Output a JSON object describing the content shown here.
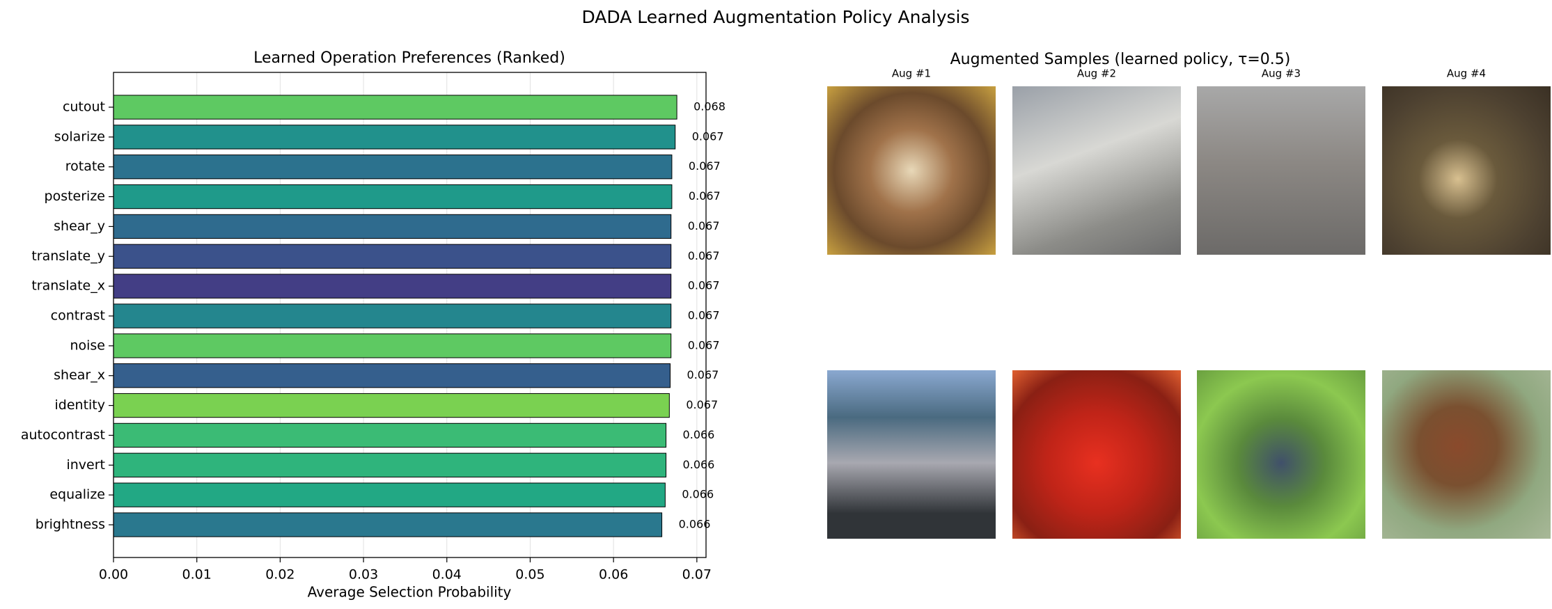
{
  "title": "DADA Learned Augmentation Policy Analysis",
  "chart_data": {
    "type": "barh",
    "title": "Learned Operation Preferences (Ranked)",
    "x_label": "Average Selection Probability",
    "categories": [
      "cutout",
      "solarize",
      "rotate",
      "posterize",
      "shear_y",
      "translate_y",
      "translate_x",
      "contrast",
      "noise",
      "shear_x",
      "identity",
      "autocontrast",
      "invert",
      "equalize",
      "brightness"
    ],
    "values": [
      0.0676,
      0.0674,
      0.067,
      0.067,
      0.0669,
      0.0669,
      0.0669,
      0.0669,
      0.0669,
      0.0668,
      0.0667,
      0.0663,
      0.0663,
      0.0662,
      0.0658
    ],
    "value_labels": [
      "0.068",
      "0.067",
      "0.067",
      "0.067",
      "0.067",
      "0.067",
      "0.067",
      "0.067",
      "0.067",
      "0.067",
      "0.067",
      "0.066",
      "0.066",
      "0.066",
      "0.066"
    ],
    "colors": [
      "#5ec962",
      "#21918c",
      "#2c728e",
      "#1f9a8a",
      "#2f6b8e",
      "#3b528b",
      "#433e85",
      "#24868e",
      "#5ec962",
      "#355f8d",
      "#7ad151",
      "#3bbb75",
      "#2fb47c",
      "#22a884",
      "#2a788e"
    ],
    "xlim": [
      0,
      0.0711
    ],
    "xticks": [
      {
        "value": 0,
        "label": "0.00"
      },
      0.01,
      0.02,
      0.03,
      0.04,
      0.05,
      0.06,
      0.07
    ],
    "grid": true
  },
  "samples": {
    "title": "Augmented Samples (learned policy, τ=0.5)",
    "labels": [
      "Aug #1",
      "Aug #2",
      "Aug #3",
      "Aug #4"
    ]
  }
}
